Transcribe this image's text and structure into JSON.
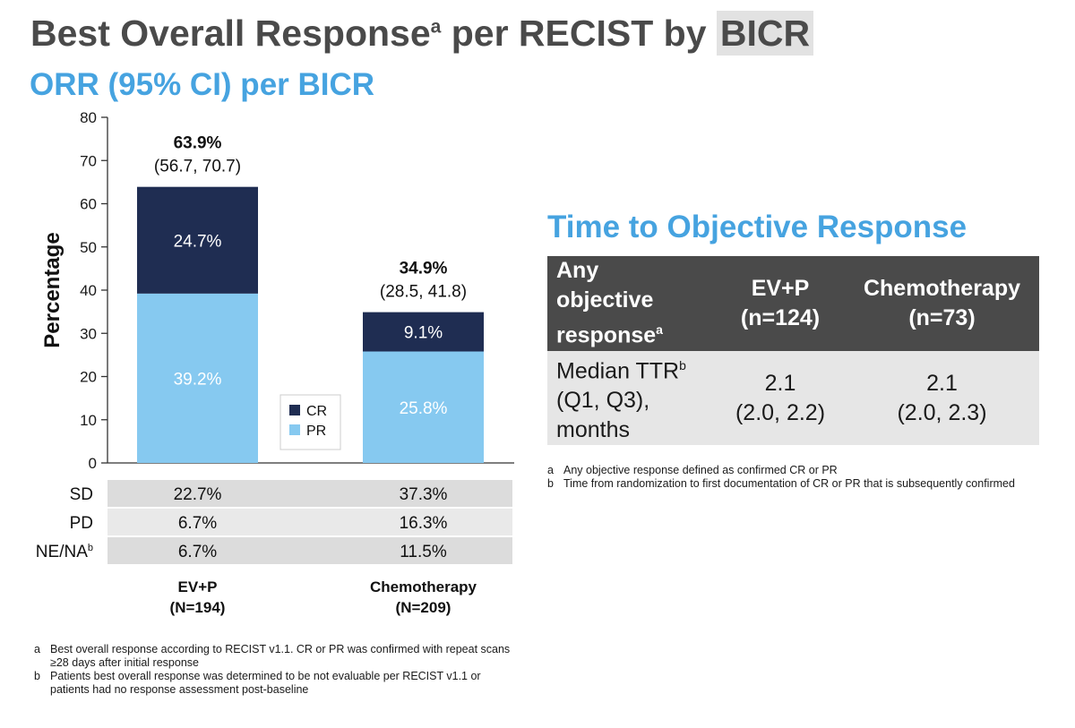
{
  "title": {
    "text_a": "Best Overall Response",
    "sup": "a",
    "text_b": " per RECIST by ",
    "highlight": "BICR"
  },
  "subtitle": "ORR (95% CI) per BICR",
  "colors": {
    "title_gray": "#4a4a4a",
    "accent_blue": "#46a3e0",
    "cr_navy": "#1f2d52",
    "pr_light_blue": "#86c9f0",
    "table_header": "#4a4a4a",
    "row_gray": "#e6e6e6"
  },
  "chart_data": {
    "type": "bar",
    "stacked": true,
    "categories": [
      "EV+P",
      "Chemotherapy"
    ],
    "category_n": [
      "(N=194)",
      "(N=209)"
    ],
    "ylabel": "Percentage",
    "ylim": [
      0,
      80
    ],
    "yticks": [
      0,
      10,
      20,
      30,
      40,
      50,
      60,
      70,
      80
    ],
    "series": [
      {
        "name": "PR",
        "color": "#86c9f0",
        "values": [
          39.2,
          25.8
        ],
        "labels": [
          "39.2%",
          "25.8%"
        ]
      },
      {
        "name": "CR",
        "color": "#1f2d52",
        "values": [
          24.7,
          9.1
        ],
        "labels": [
          "24.7%",
          "9.1%"
        ]
      }
    ],
    "totals": [
      {
        "value": 63.9,
        "label": "63.9%",
        "ci": "(56.7, 70.7)"
      },
      {
        "value": 34.9,
        "label": "34.9%",
        "ci": "(28.5, 41.8)"
      }
    ],
    "legend": {
      "placement": "center",
      "order": [
        "CR",
        "PR"
      ]
    },
    "table_rows": [
      {
        "label": "SD",
        "sup": "",
        "values": [
          "22.7%",
          "37.3%"
        ]
      },
      {
        "label": "PD",
        "sup": "",
        "values": [
          "6.7%",
          "16.3%"
        ]
      },
      {
        "label": "NE/NA",
        "sup": "b",
        "values": [
          "6.7%",
          "11.5%"
        ]
      }
    ]
  },
  "footnotes_left": [
    {
      "letter": "a",
      "text": "Best overall response according to RECIST v1.1. CR or PR was confirmed with repeat scans ≥28 days after initial response"
    },
    {
      "letter": "b",
      "text": "Patients best overall response was determined to be not evaluable per RECIST v1.1 or patients had no response assessment post-baseline"
    }
  ],
  "ttr": {
    "title": "Time to Objective Response",
    "header": {
      "col1_line1": "Any",
      "col1_line2": "objective",
      "col1_line3": "response",
      "col1_sup": "a",
      "col2_line1": "EV+P",
      "col2_line2": "(n=124)",
      "col3_line1": "Chemotherapy",
      "col3_line2": "(n=73)"
    },
    "row": {
      "label_line1": "Median TTR",
      "label_sup": "b",
      "label_line2": "(Q1, Q3),",
      "label_line3": "months",
      "evp_median": "2.1",
      "evp_range": "(2.0, 2.2)",
      "chemo_median": "2.1",
      "chemo_range": "(2.0, 2.3)"
    },
    "footnotes": [
      {
        "letter": "a",
        "text": "Any objective response defined as confirmed CR or PR"
      },
      {
        "letter": "b",
        "text": "Time from randomization to first documentation of CR or PR that is subsequently confirmed"
      }
    ]
  }
}
